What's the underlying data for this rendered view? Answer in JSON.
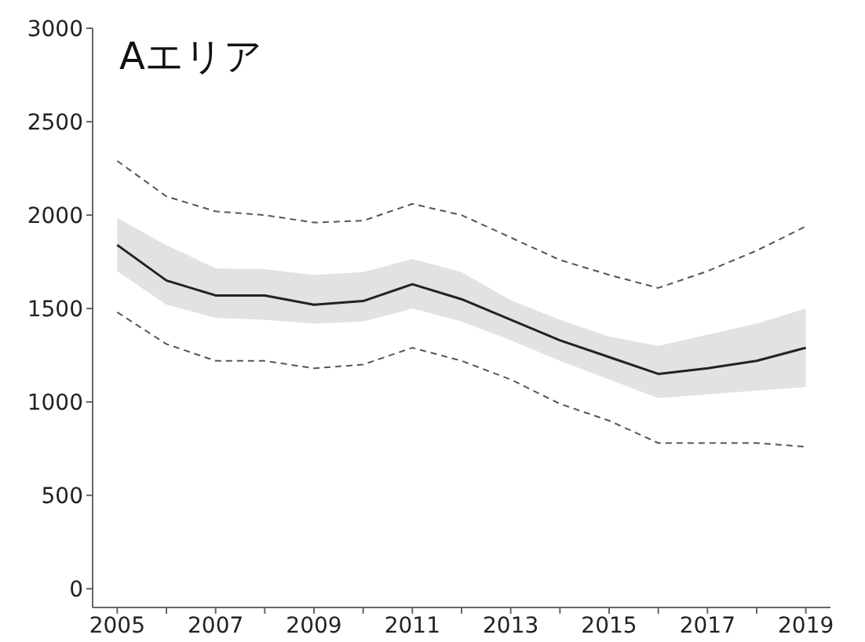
{
  "chart_data": {
    "type": "line",
    "title": "Aエリア",
    "x": [
      2005,
      2006,
      2007,
      2008,
      2009,
      2010,
      2011,
      2012,
      2013,
      2014,
      2015,
      2016,
      2017,
      2018,
      2019
    ],
    "series": [
      {
        "color": "#222222",
        "line_style": "solid",
        "values": [
          1840,
          1650,
          1570,
          1570,
          1520,
          1540,
          1630,
          1550,
          1440,
          1330,
          1240,
          1150,
          1180,
          1220,
          1290
        ],
        "lower": [
          1700,
          1520,
          1450,
          1440,
          1420,
          1430,
          1500,
          1430,
          1330,
          1220,
          1120,
          1020,
          1040,
          1060,
          1080
        ],
        "upper": [
          1985,
          1840,
          1715,
          1710,
          1680,
          1695,
          1765,
          1695,
          1545,
          1440,
          1350,
          1300,
          1360,
          1420,
          1500
        ]
      },
      {
        "color": "#555555",
        "line_style": "dashed",
        "values": [
          2290,
          2100,
          2020,
          2000,
          1960,
          1970,
          2060,
          2000,
          1880,
          1760,
          1680,
          1610,
          1700,
          1810,
          1940
        ]
      },
      {
        "color": "#555555",
        "line_style": "dashed",
        "values": [
          1480,
          1310,
          1220,
          1220,
          1180,
          1200,
          1290,
          1220,
          1120,
          990,
          900,
          780,
          780,
          780,
          760
        ]
      }
    ],
    "xlim": [
      2004.5,
      2019.5
    ],
    "xticks": [
      2005,
      {
        "value": 2006,
        "label": null
      },
      2007,
      {
        "value": 2008,
        "label": null
      },
      2009,
      {
        "value": 2010,
        "label": null
      },
      2011,
      {
        "value": 2012,
        "label": null
      },
      2013,
      {
        "value": 2014,
        "label": null
      },
      2015,
      {
        "value": 2016,
        "label": null
      },
      2017,
      {
        "value": 2018,
        "label": null
      },
      2019
    ],
    "ylim": [
      -100,
      3000
    ],
    "yticks": [
      0,
      500,
      1000,
      1500,
      2000,
      2500,
      3000
    ],
    "grid": false,
    "legend": false,
    "marker": "none"
  }
}
